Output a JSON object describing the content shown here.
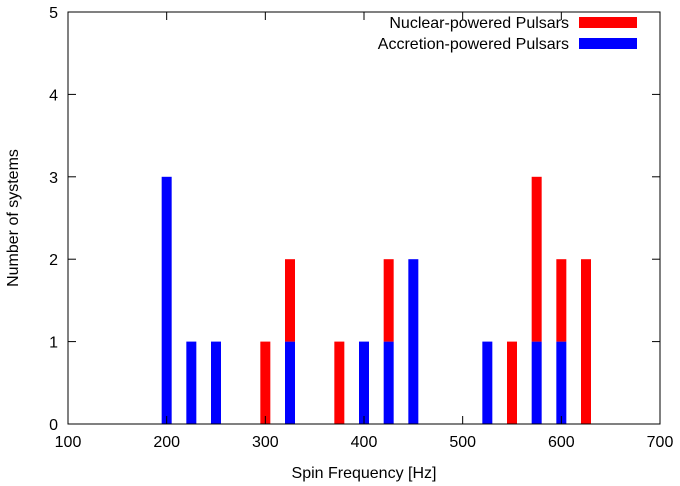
{
  "chart_data": {
    "type": "bar",
    "stacked": true,
    "xlabel": "Spin Frequency [Hz]",
    "ylabel": "Number of systems",
    "xlim": [
      100,
      700
    ],
    "ylim": [
      0,
      5
    ],
    "xticks": [
      100,
      200,
      300,
      400,
      500,
      600,
      700
    ],
    "yticks": [
      0,
      1,
      2,
      3,
      4,
      5
    ],
    "bin_width": 25,
    "grid": false,
    "legend_position": "top-right",
    "series": [
      {
        "name": "Accretion-powered Pulsars",
        "color": "#0000ff",
        "points": [
          {
            "x": 200,
            "y": 3
          },
          {
            "x": 225,
            "y": 1
          },
          {
            "x": 250,
            "y": 1
          },
          {
            "x": 325,
            "y": 1
          },
          {
            "x": 400,
            "y": 1
          },
          {
            "x": 425,
            "y": 1
          },
          {
            "x": 450,
            "y": 2
          },
          {
            "x": 525,
            "y": 1
          },
          {
            "x": 575,
            "y": 1
          },
          {
            "x": 600,
            "y": 1
          }
        ]
      },
      {
        "name": "Nuclear-powered Pulsars",
        "color": "#ff0000",
        "points": [
          {
            "x": 300,
            "y": 1
          },
          {
            "x": 325,
            "y": 1
          },
          {
            "x": 375,
            "y": 1
          },
          {
            "x": 425,
            "y": 1
          },
          {
            "x": 550,
            "y": 1
          },
          {
            "x": 575,
            "y": 2
          },
          {
            "x": 600,
            "y": 1
          },
          {
            "x": 625,
            "y": 2
          }
        ]
      }
    ],
    "legend_order": [
      "Nuclear-powered Pulsars",
      "Accretion-powered Pulsars"
    ]
  }
}
